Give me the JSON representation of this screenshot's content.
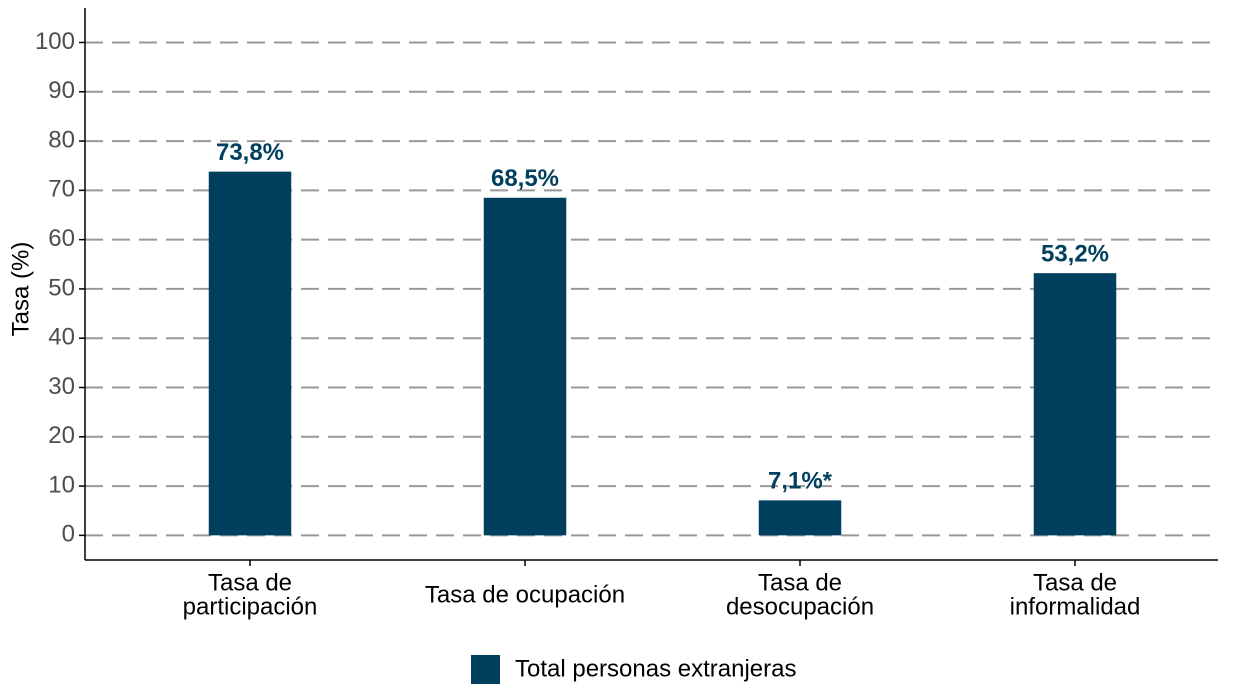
{
  "chart_data": {
    "type": "bar",
    "categories": [
      [
        "Tasa de",
        "participación"
      ],
      [
        "Tasa de ocupación"
      ],
      [
        "Tasa de",
        "desocupación"
      ],
      [
        "Tasa de",
        "informalidad"
      ]
    ],
    "values": [
      73.8,
      68.5,
      7.1,
      53.2
    ],
    "value_labels": [
      "73,8%",
      "68,5%",
      "7,1%*",
      "53,2%"
    ],
    "series_name": "Total personas extranjeras",
    "color": "#00405e",
    "ylabel": "Tasa (%)",
    "ylim": [
      -5,
      107
    ],
    "yticks": [
      0,
      10,
      20,
      30,
      40,
      50,
      60,
      70,
      80,
      90,
      100
    ],
    "grid": true,
    "legend": "bottom"
  }
}
